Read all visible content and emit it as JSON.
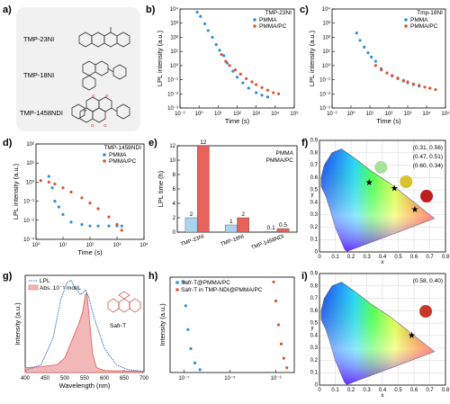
{
  "panels": {
    "a": {
      "label": "a)",
      "compounds": [
        "TMP-23NI",
        "TMP-18NI",
        "TMP-1458NDI"
      ]
    },
    "b": {
      "label": "b)"
    },
    "c": {
      "label": "c)"
    },
    "d": {
      "label": "d)"
    },
    "e": {
      "label": "e)"
    },
    "f": {
      "label": "f)"
    },
    "g": {
      "label": "g)"
    },
    "h": {
      "label": "h)"
    },
    "i": {
      "label": "i)"
    }
  },
  "colors": {
    "pmma": "#2e8fd6",
    "pmma_pc": "#e05434",
    "bar_pmma": "#a9d3f0",
    "bar_pmmapc": "#e8625a",
    "lpl": "#2f6fc4",
    "abs": "#f2b8b8"
  },
  "chart_data": [
    {
      "id": "b",
      "type": "scatter",
      "title": "TMP-23NI",
      "xlabel": "Time (s)",
      "ylabel": "LPL intensity (a.u.)",
      "xscale": "log",
      "yscale": "log",
      "xlim": [
        0.1,
        100000
      ],
      "ylim": [
        0.001,
        10000
      ],
      "xticks": [
        "10⁻¹",
        "10⁰",
        "10¹",
        "10²",
        "10³",
        "10⁴",
        "10⁵"
      ],
      "yticks": [
        "10⁻³",
        "10⁻²",
        "10⁻¹",
        "10⁰",
        "10¹",
        "10²",
        "10³",
        "10⁴"
      ],
      "legend": "top-right",
      "series": [
        {
          "name": "PMMA",
          "points": [
            [
              0.8,
              6000
            ],
            [
              1.2,
              3000
            ],
            [
              2,
              900
            ],
            [
              3,
              300
            ],
            [
              5,
              100
            ],
            [
              8,
              30
            ],
            [
              12,
              12
            ],
            [
              20,
              5
            ],
            [
              30,
              1.5
            ],
            [
              60,
              0.4
            ],
            [
              100,
              0.15
            ],
            [
              200,
              0.06
            ],
            [
              400,
              0.025
            ],
            [
              1000,
              0.012
            ],
            [
              2000,
              0.008
            ],
            [
              4000,
              0.006
            ]
          ]
        },
        {
          "name": "PMMA/PC",
          "points": [
            [
              15,
              6
            ],
            [
              25,
              2
            ],
            [
              40,
              1
            ],
            [
              80,
              0.5
            ],
            [
              150,
              0.25
            ],
            [
              300,
              0.12
            ],
            [
              600,
              0.07
            ],
            [
              1000,
              0.045
            ],
            [
              2000,
              0.028
            ],
            [
              4000,
              0.018
            ],
            [
              8000,
              0.012
            ],
            [
              15000,
              0.01
            ]
          ]
        }
      ]
    },
    {
      "id": "c",
      "type": "scatter",
      "title": "Tmp-18NI",
      "xlabel": "Time (s)",
      "ylabel": "LPL intensity (a.u.)",
      "xscale": "log",
      "yscale": "log",
      "xlim": [
        0.1,
        100000
      ],
      "ylim": [
        0.001,
        10000
      ],
      "xticks": [
        "10⁻¹",
        "10⁰",
        "10¹",
        "10²",
        "10³",
        "10⁴",
        "10⁵"
      ],
      "yticks": [
        "10⁻³",
        "10⁻²",
        "10⁻¹",
        "10⁰",
        "10¹",
        "10²",
        "10³",
        "10⁴"
      ],
      "legend": "top-right",
      "series": [
        {
          "name": "PMMA",
          "points": [
            [
              2,
              200
            ],
            [
              3,
              60
            ],
            [
              5,
              20
            ],
            [
              8,
              8
            ],
            [
              12,
              4
            ],
            [
              20,
              2
            ],
            [
              40,
              0.6
            ],
            [
              80,
              0.3
            ],
            [
              150,
              0.18
            ],
            [
              300,
              0.12
            ],
            [
              600,
              0.08
            ],
            [
              1000,
              0.06
            ],
            [
              2000,
              0.045
            ],
            [
              4000,
              0.035
            ]
          ]
        },
        {
          "name": "PMMA/PC",
          "points": [
            [
              20,
              1
            ],
            [
              40,
              0.5
            ],
            [
              80,
              0.3
            ],
            [
              150,
              0.2
            ],
            [
              300,
              0.13
            ],
            [
              600,
              0.09
            ],
            [
              1000,
              0.07
            ],
            [
              2000,
              0.05
            ],
            [
              4000,
              0.04
            ],
            [
              8000,
              0.03
            ],
            [
              15000,
              0.025
            ],
            [
              30000,
              0.02
            ]
          ]
        }
      ]
    },
    {
      "id": "d",
      "type": "scatter",
      "title": "TMP-1458NDI",
      "xlabel": "Time (s)",
      "ylabel": "LPL intensity (a.u.)",
      "xscale": "log",
      "yscale": "log",
      "xlim": [
        1,
        10000
      ],
      "ylim": [
        0.001,
        100
      ],
      "xticks": [
        "10⁰",
        "10¹",
        "10²",
        "10³",
        "10⁴"
      ],
      "yticks": [
        "10⁻³",
        "10⁻²",
        "10⁻¹",
        "10⁰",
        "10¹",
        "10²"
      ],
      "legend": "top-right",
      "series": [
        {
          "name": "PMMA",
          "points": [
            [
              3,
              2
            ],
            [
              4,
              0.5
            ],
            [
              5,
              0.1
            ],
            [
              7,
              0.05
            ],
            [
              10,
              0.02
            ],
            [
              20,
              0.008
            ],
            [
              50,
              0.006
            ],
            [
              100,
              0.005
            ],
            [
              200,
              0.005
            ],
            [
              500,
              0.005
            ],
            [
              1000,
              0.005
            ],
            [
              1500,
              0.005
            ]
          ]
        },
        {
          "name": "PMMA/PC",
          "points": [
            [
              1.5,
              1.2
            ],
            [
              3,
              1
            ],
            [
              5,
              0.8
            ],
            [
              10,
              0.5
            ],
            [
              20,
              0.3
            ],
            [
              50,
              0.15
            ],
            [
              100,
              0.08
            ],
            [
              200,
              0.04
            ],
            [
              500,
              0.015
            ],
            [
              1000,
              0.006
            ],
            [
              1500,
              0.003
            ]
          ]
        }
      ]
    },
    {
      "id": "e",
      "type": "bar",
      "ylabel": "LPL time (h)",
      "ylim": [
        0,
        12
      ],
      "yticks": [
        "0",
        "2",
        "4",
        "6",
        "8",
        "10",
        "12"
      ],
      "categories": [
        "TMP-23NI",
        "TMP-18NI",
        "TMP-1458NDI"
      ],
      "legend": "top-right",
      "series": [
        {
          "name": "PMMA",
          "values": [
            2,
            1,
            0.1
          ],
          "labels": [
            "2",
            "1",
            "0.1"
          ]
        },
        {
          "name": "PMMA/PC",
          "values": [
            12,
            2,
            0.5
          ],
          "labels": [
            "12",
            "2",
            "0.5"
          ]
        }
      ]
    },
    {
      "id": "f",
      "type": "scatter",
      "subtype": "CIE 1931 chromaticity",
      "xlabel": "x",
      "ylabel": "y",
      "xlim": [
        0,
        0.8
      ],
      "ylim": [
        0,
        0.9
      ],
      "xticks": [
        "0",
        "0.1",
        "0.2",
        "0.3",
        "0.4",
        "0.5",
        "0.6",
        "0.7",
        "0.8"
      ],
      "yticks": [
        "0",
        "0.1",
        "0.2",
        "0.3",
        "0.4",
        "0.5",
        "0.6",
        "0.7",
        "0.8",
        "0.9"
      ],
      "points": [
        {
          "x": 0.31,
          "y": 0.56,
          "label": "(0.31, 0.56)",
          "swatch": "#a8e29a"
        },
        {
          "x": 0.47,
          "y": 0.51,
          "label": "(0.47, 0.51)",
          "swatch": "#d8c22e"
        },
        {
          "x": 0.6,
          "y": 0.34,
          "label": "(0.60, 0.34)",
          "swatch": "#c01e1e"
        }
      ],
      "wavelength_labels": [
        "520",
        "540",
        "560",
        "580",
        "600",
        "620",
        "700",
        "500",
        "490",
        "480",
        "470",
        "460",
        "380"
      ]
    },
    {
      "id": "g",
      "type": "line",
      "xlabel": "Wavelength (nm)",
      "ylabel": "Intensity (a.u.)",
      "xlim": [
        400,
        700
      ],
      "xticks": [
        "400",
        "450",
        "500",
        "550",
        "600",
        "650",
        "700"
      ],
      "legend": "top-left",
      "annotation": "Safr-T",
      "series": [
        {
          "name": "LPL",
          "style": "dotted",
          "points": [
            [
              400,
              0.02
            ],
            [
              440,
              0.08
            ],
            [
              470,
              0.35
            ],
            [
              490,
              0.75
            ],
            [
              505,
              0.92
            ],
            [
              515,
              0.95
            ],
            [
              525,
              0.88
            ],
            [
              540,
              0.8
            ],
            [
              552,
              0.85
            ],
            [
              560,
              0.78
            ],
            [
              575,
              0.55
            ],
            [
              600,
              0.25
            ],
            [
              630,
              0.08
            ],
            [
              660,
              0.03
            ],
            [
              700,
              0.01
            ]
          ]
        },
        {
          "name": "Abs. 10⁻⁵ mol/L",
          "style": "filled",
          "points": [
            [
              400,
              0.05
            ],
            [
              440,
              0.06
            ],
            [
              480,
              0.08
            ],
            [
              500,
              0.15
            ],
            [
              520,
              0.35
            ],
            [
              535,
              0.5
            ],
            [
              545,
              0.62
            ],
            [
              552,
              0.8
            ],
            [
              556,
              0.82
            ],
            [
              562,
              0.55
            ],
            [
              570,
              0.2
            ],
            [
              580,
              0.05
            ],
            [
              600,
              0.02
            ],
            [
              700,
              0.01
            ]
          ]
        }
      ]
    },
    {
      "id": "h",
      "type": "scatter",
      "ylabel": "Intensity (a.u.)",
      "xlabel": "",
      "xscale": "log",
      "xticks": [
        "10⁻⁷",
        "10⁻⁵",
        "10⁻³"
      ],
      "legend": "top-right",
      "series": [
        {
          "name": "Safr-T@PMMA/PC",
          "points": [
            [
              1e-07,
              0.95
            ],
            [
              1.2e-07,
              0.7
            ],
            [
              1.5e-07,
              0.45
            ],
            [
              2e-07,
              0.25
            ],
            [
              3e-07,
              0.1
            ],
            [
              5e-07,
              0.03
            ]
          ]
        },
        {
          "name": "Safr-T in TMP-NDI@PMMA/PC",
          "points": [
            [
              0.0008,
              0.95
            ],
            [
              0.001,
              0.75
            ],
            [
              0.0013,
              0.5
            ],
            [
              0.0017,
              0.3
            ],
            [
              0.0022,
              0.15
            ],
            [
              0.003,
              0.05
            ]
          ]
        }
      ]
    },
    {
      "id": "i",
      "type": "scatter",
      "subtype": "CIE 1931 chromaticity",
      "xlabel": "x",
      "ylabel": "y",
      "xlim": [
        0,
        0.8
      ],
      "ylim": [
        0,
        0.9
      ],
      "xticks": [
        "0",
        "0.1",
        "0.2",
        "0.3",
        "0.4",
        "0.5",
        "0.6",
        "0.7",
        "0.8"
      ],
      "yticks": [
        "0",
        "0.1",
        "0.2",
        "0.3",
        "0.4",
        "0.5",
        "0.6",
        "0.7",
        "0.8",
        "0.9"
      ],
      "points": [
        {
          "x": 0.58,
          "y": 0.4,
          "label": "(0.58, 0.40)",
          "swatch": "#c8372a"
        }
      ]
    }
  ]
}
